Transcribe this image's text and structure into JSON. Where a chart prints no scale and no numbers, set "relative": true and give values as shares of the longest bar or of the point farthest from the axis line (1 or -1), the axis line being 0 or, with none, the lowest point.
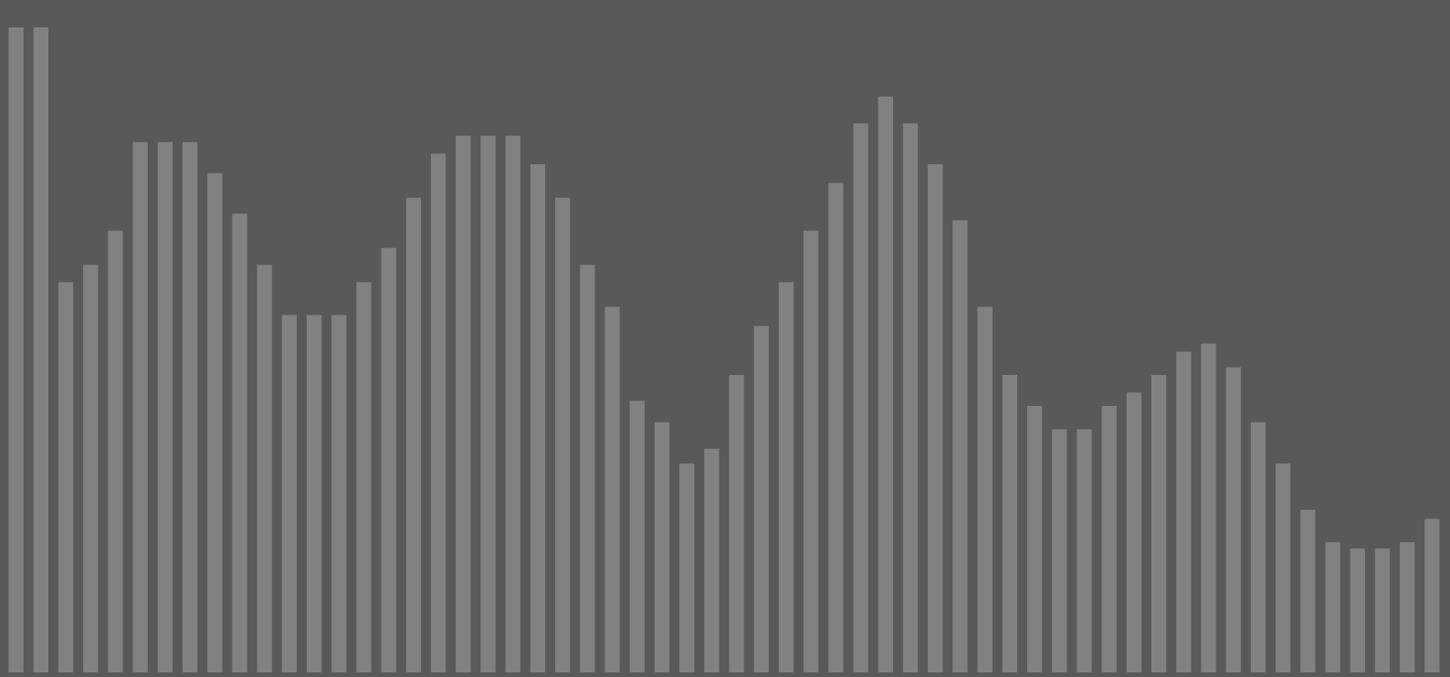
{
  "chart_data": {
    "type": "bar",
    "relative": true,
    "color": "#808184",
    "categories": [
      null,
      null,
      null,
      null,
      null,
      null,
      null,
      null,
      null,
      null,
      null,
      null,
      null,
      null,
      null,
      null,
      null,
      null,
      null,
      null,
      null,
      null,
      null,
      null,
      null,
      null,
      null,
      null,
      null,
      null,
      null,
      null,
      null,
      null,
      null,
      null,
      null,
      null,
      null,
      null,
      null,
      null,
      null,
      null,
      null,
      null,
      null,
      null,
      null,
      null,
      null,
      null,
      null,
      null,
      null,
      null,
      null,
      null
    ],
    "values": [
      1,
      1,
      0.605,
      0.632,
      0.685,
      0.822,
      0.822,
      0.822,
      0.774,
      0.711,
      0.632,
      0.554,
      0.554,
      0.554,
      0.605,
      0.658,
      0.736,
      0.804,
      0.832,
      0.832,
      0.832,
      0.788,
      0.736,
      0.632,
      0.567,
      0.421,
      0.388,
      0.324,
      0.347,
      0.461,
      0.537,
      0.605,
      0.685,
      0.759,
      0.851,
      0.893,
      0.851,
      0.788,
      0.701,
      0.567,
      0.461,
      0.413,
      0.377,
      0.377,
      0.413,
      0.434,
      0.461,
      0.497,
      0.51,
      0.473,
      0.388,
      0.324,
      0.252,
      0.202,
      0.192,
      0.192,
      0.202,
      0.238
    ]
  }
}
